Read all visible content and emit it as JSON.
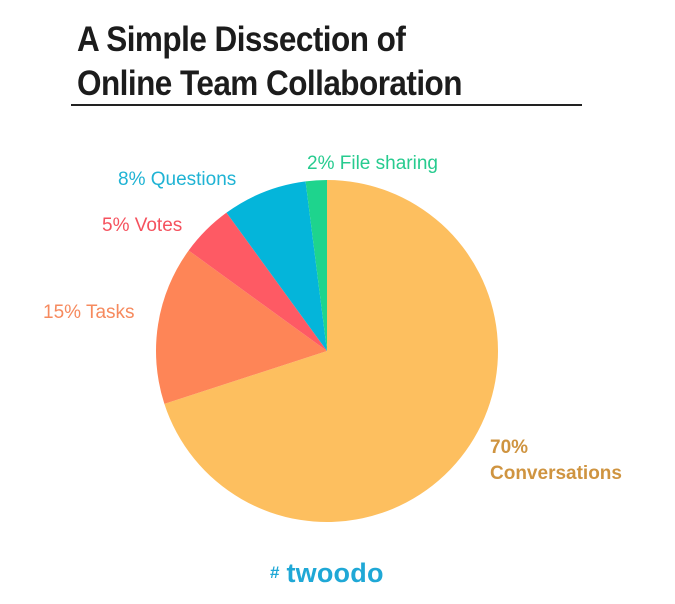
{
  "page": {
    "title_line1": "A Simple Dissection of",
    "title_line2": "Online Team Collaboration"
  },
  "chart_data": {
    "type": "pie",
    "title": "A Simple Dissection of Online Team Collaboration",
    "slices": [
      {
        "value": 70,
        "label_lines": [
          "70%",
          "Conversations"
        ],
        "color": "#fdbf5f",
        "label_color": "#cf9440"
      },
      {
        "value": 15,
        "label_lines": [
          "15% Tasks"
        ],
        "color": "#fe8557",
        "label_color": "#f68a5e"
      },
      {
        "value": 5,
        "label_lines": [
          "5% Votes"
        ],
        "color": "#fe5a64",
        "label_color": "#f5525e"
      },
      {
        "value": 8,
        "label_lines": [
          "8% Questions"
        ],
        "color": "#04b5da",
        "label_color": "#1fb3d4"
      },
      {
        "value": 2,
        "label_lines": [
          "2% File sharing"
        ],
        "color": "#1ed48d",
        "label_color": "#27cb8f"
      }
    ],
    "start_angle_deg": 0,
    "direction": "clockwise"
  },
  "logo": {
    "symbol": "#",
    "text": "twoodo",
    "color": "#1fa8d6"
  }
}
